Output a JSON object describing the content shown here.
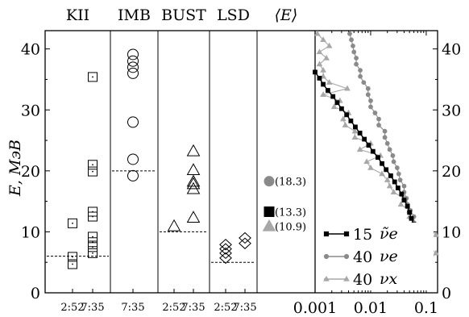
{
  "chart_data": {
    "type": "scatter",
    "ylabel": "E, МэВ",
    "ylim": [
      0,
      43
    ],
    "yticks": [
      0,
      10,
      20,
      30,
      40
    ],
    "detector_panels": [
      {
        "title": "KII",
        "columns": [
          {
            "label": "2:52",
            "points": [
              4.7,
              5.9,
              11.4
            ]
          },
          {
            "label": "7:35",
            "points": [
              6.5,
              7.5,
              8.3,
              9.2,
              12.5,
              13.3,
              19.9,
              21.0,
              35.4
            ]
          }
        ],
        "mean_energy": 6,
        "marker": "square"
      },
      {
        "title": "IMB",
        "columns": [
          {
            "label": "7:35",
            "points": [
              19.2,
              21.9,
              28.0,
              36.0,
              37.0,
              38.0,
              39.1
            ]
          }
        ],
        "mean_energy": 20,
        "marker": "circle"
      },
      {
        "title": "BUST",
        "columns": [
          {
            "label": "2:52",
            "points": [
              10.9
            ]
          },
          {
            "label": "7:35",
            "points": [
              12.3,
              17.0,
              17.8,
              18.2,
              20.1,
              23.2
            ]
          }
        ],
        "mean_energy": 10,
        "marker": "triangle"
      },
      {
        "title": "LSD",
        "columns": [
          {
            "label": "2:52",
            "points": [
              5.7,
              6.5,
              7.2,
              7.9
            ]
          },
          {
            "label": "7:35",
            "points": [
              8.1,
              9.0
            ]
          }
        ],
        "mean_energy": 5,
        "marker": "diamond"
      }
    ],
    "mean_panel": {
      "title": "⟨E⟩",
      "entries": [
        {
          "value": 18.3,
          "label": "(18.3)",
          "marker": "circle",
          "color": "#8a8a8a"
        },
        {
          "value": 13.3,
          "label": "(13.3)",
          "marker": "square",
          "color": "#000000"
        },
        {
          "value": 10.9,
          "label": "(10.9)",
          "marker": "triangle",
          "color": "#a8a8a8"
        }
      ]
    },
    "spectrum_panel": {
      "x_scale": "log",
      "xlim": [
        0.001,
        0.16
      ],
      "xtick_labels": [
        "0.001",
        "0.01",
        "0.1"
      ],
      "xtick_values": [
        0.001,
        0.01,
        0.1
      ],
      "right_yticks": [
        0,
        10,
        20,
        30,
        40
      ],
      "legend_position": "bottom-right",
      "series": [
        {
          "name": "ν̃e",
          "prefix": "15",
          "marker": "square",
          "color": "#000000",
          "points": [
            [
              0.068,
              5.2
            ],
            [
              0.07,
              6.2
            ],
            [
              0.072,
              7.2
            ],
            [
              0.07,
              8.2
            ],
            [
              0.068,
              9.2
            ],
            [
              0.064,
              10.2
            ],
            [
              0.06,
              11.2
            ],
            [
              0.054,
              12.2
            ],
            [
              0.05,
              13.2
            ],
            [
              0.046,
              14.2
            ],
            [
              0.04,
              15.2
            ],
            [
              0.036,
              16.2
            ],
            [
              0.031,
              17.2
            ],
            [
              0.027,
              18.2
            ],
            [
              0.023,
              19.2
            ],
            [
              0.019,
              20.2
            ],
            [
              0.016,
              21.2
            ],
            [
              0.0135,
              22.2
            ],
            [
              0.011,
              23.2
            ],
            [
              0.0092,
              24.2
            ],
            [
              0.0077,
              25.2
            ],
            [
              0.0064,
              26.2
            ],
            [
              0.0053,
              27.2
            ],
            [
              0.0044,
              28.2
            ],
            [
              0.0037,
              29.2
            ],
            [
              0.003,
              30.2
            ],
            [
              0.0025,
              31.2
            ],
            [
              0.0021,
              32.2
            ],
            [
              0.0017,
              33.2
            ],
            [
              0.0014,
              34.2
            ],
            [
              0.0012,
              35.2
            ],
            [
              0.001,
              36.2
            ]
          ]
        },
        {
          "name": "νe",
          "prefix": "40",
          "marker": "circle",
          "color": "#8a8a8a",
          "points": [
            [
              0.1,
              5.5
            ],
            [
              0.098,
              6.5
            ],
            [
              0.09,
              7.5
            ],
            [
              0.08,
              8.5
            ],
            [
              0.076,
              9.5
            ],
            [
              0.064,
              10.5
            ],
            [
              0.06,
              11.5
            ],
            [
              0.06,
              12.5
            ],
            [
              0.052,
              13.5
            ],
            [
              0.046,
              14.5
            ],
            [
              0.044,
              15.5
            ],
            [
              0.04,
              16.5
            ],
            [
              0.04,
              17.5
            ],
            [
              0.034,
              18.5
            ],
            [
              0.032,
              19.5
            ],
            [
              0.03,
              20.5
            ],
            [
              0.026,
              21.5
            ],
            [
              0.025,
              22.5
            ],
            [
              0.022,
              23.5
            ],
            [
              0.02,
              24.5
            ],
            [
              0.018,
              25.5
            ],
            [
              0.018,
              26.5
            ],
            [
              0.014,
              27.5
            ],
            [
              0.014,
              28.5
            ],
            [
              0.012,
              29.5
            ],
            [
              0.01,
              30.5
            ],
            [
              0.01,
              31.5
            ],
            [
              0.009,
              32.5
            ],
            [
              0.009,
              33.5
            ],
            [
              0.0075,
              34.5
            ],
            [
              0.0065,
              35.5
            ],
            [
              0.0065,
              36.5
            ],
            [
              0.0055,
              37.5
            ],
            [
              0.0055,
              38.5
            ],
            [
              0.005,
              39.5
            ],
            [
              0.0048,
              40.5
            ],
            [
              0.0045,
              41.5
            ],
            [
              0.0042,
              42.5
            ]
          ]
        },
        {
          "name": "νx",
          "prefix": "40",
          "marker": "triangle",
          "color": "#a8a8a8",
          "points": [
            [
              0.12,
              5.5
            ],
            [
              0.15,
              6.5
            ],
            [
              0.11,
              7.5
            ],
            [
              0.085,
              8.5
            ],
            [
              0.15,
              9.5
            ],
            [
              0.11,
              10.5
            ],
            [
              0.06,
              11.5
            ],
            [
              0.05,
              12.5
            ],
            [
              0.05,
              13.5
            ],
            [
              0.035,
              14.5
            ],
            [
              0.04,
              15.5
            ],
            [
              0.026,
              16.5
            ],
            [
              0.022,
              17.5
            ],
            [
              0.02,
              18.5
            ],
            [
              0.016,
              19.5
            ],
            [
              0.01,
              20.5
            ],
            [
              0.0085,
              21.5
            ],
            [
              0.015,
              22.5
            ],
            [
              0.0064,
              23.5
            ],
            [
              0.01,
              24.5
            ],
            [
              0.0052,
              25.5
            ],
            [
              0.0052,
              26.5
            ],
            [
              0.0035,
              27.5
            ],
            [
              0.0032,
              28.5
            ],
            [
              0.004,
              29.5
            ],
            [
              0.0022,
              30.5
            ],
            [
              0.0028,
              31.5
            ],
            [
              0.0014,
              32.5
            ],
            [
              0.0038,
              33.5
            ],
            [
              0.0018,
              34.5
            ],
            [
              0.0014,
              35.5
            ],
            [
              0.0014,
              36.5
            ],
            [
              0.0012,
              37.5
            ],
            [
              0.0016,
              38.5
            ],
            [
              0.0012,
              39.5
            ],
            [
              0.0018,
              40.5
            ],
            [
              0.0014,
              41.5
            ],
            [
              0.0011,
              42.5
            ]
          ]
        }
      ]
    }
  }
}
